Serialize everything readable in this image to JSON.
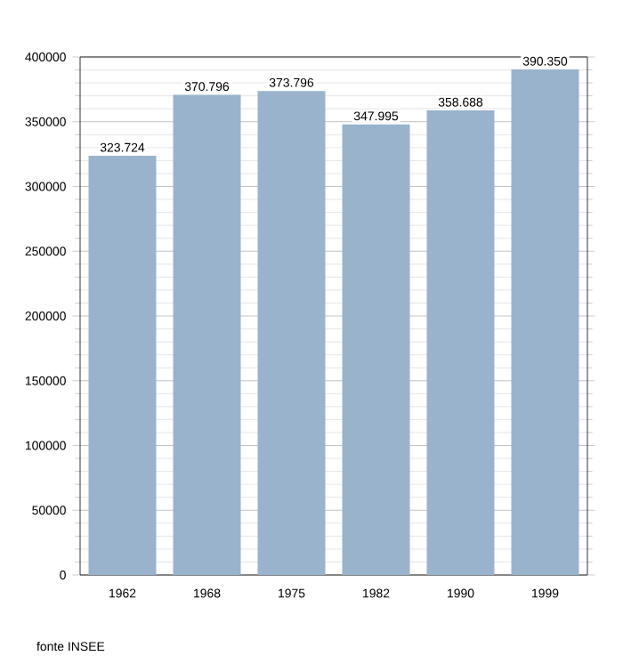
{
  "chart_data": {
    "type": "bar",
    "categories": [
      "1962",
      "1968",
      "1975",
      "1982",
      "1990",
      "1999"
    ],
    "values": [
      323724,
      370796,
      373796,
      347995,
      358688,
      390350
    ],
    "value_labels": [
      "323.724",
      "370.796",
      "373.796",
      "347.995",
      "358.688",
      "390.350"
    ],
    "color": "#9ab3cc",
    "ylim": [
      0,
      400000
    ],
    "yticks": [
      0,
      50000,
      100000,
      150000,
      200000,
      250000,
      300000,
      350000,
      400000
    ],
    "grid": "y",
    "annotations": [
      "fonte INSEE"
    ]
  }
}
